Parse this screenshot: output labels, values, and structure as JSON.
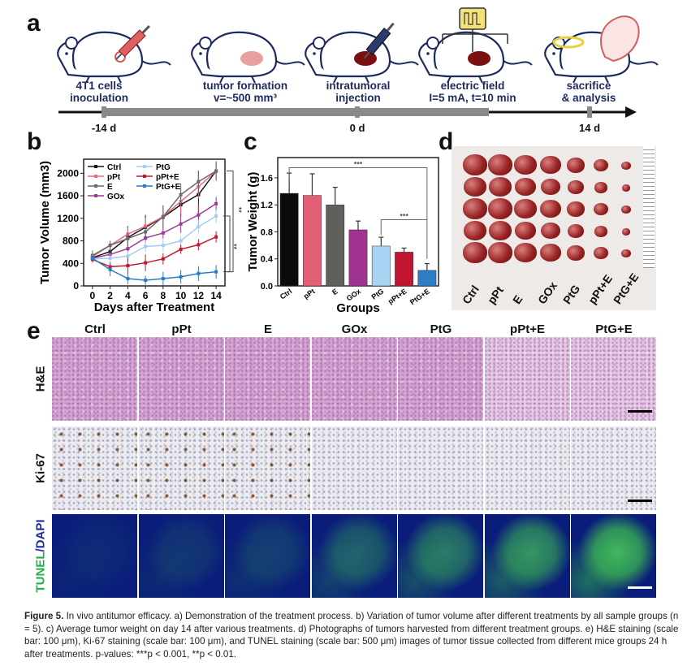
{
  "panel_labels": {
    "a": "a",
    "b": "b",
    "c": "c",
    "d": "d",
    "e": "e"
  },
  "panel_a": {
    "stages": [
      {
        "line1": "4T1 cells",
        "line2": "inoculation"
      },
      {
        "line1": "tumor formation",
        "line2": "v=~500 mm³"
      },
      {
        "line1": "intratumoral",
        "line2": "injection"
      },
      {
        "line1": "electric field",
        "line2": "I=5 mA, t=10 min"
      },
      {
        "line1": "sacrifice",
        "line2": "& analysis"
      }
    ],
    "timeline_ticks": [
      "-14 d",
      "0 d",
      "14 d"
    ]
  },
  "chart_data": [
    {
      "type": "line",
      "title": "",
      "xlabel": "Days after Treatment",
      "ylabel": "Tumor Volume (mm3)",
      "x": [
        0,
        2,
        4,
        6,
        8,
        10,
        12,
        14
      ],
      "xticks": [
        "0",
        "2",
        "4",
        "6",
        "8",
        "10",
        "12",
        "14"
      ],
      "yticks": [
        "0",
        "400",
        "800",
        "1200",
        "1600",
        "2000"
      ],
      "ylim": [
        0,
        2250
      ],
      "xlim": [
        -1,
        15
      ],
      "legend_position": "top-left",
      "significance": [
        "**",
        "**"
      ],
      "series": [
        {
          "name": "Ctrl",
          "color": "#151515",
          "marker": "square",
          "values": [
            500,
            610,
            860,
            1040,
            1220,
            1440,
            1620,
            2040
          ],
          "errors": [
            60,
            90,
            200,
            220,
            200,
            200,
            420,
            160
          ]
        },
        {
          "name": "pPt",
          "color": "#ea6b82",
          "marker": "circle",
          "values": [
            520,
            720,
            920,
            1060,
            1230,
            1500,
            1760,
            2040
          ],
          "errors": [
            60,
            80,
            120,
            150,
            200,
            220,
            200,
            180
          ]
        },
        {
          "name": "E",
          "color": "#6a6a6a",
          "marker": "triangle",
          "values": [
            540,
            720,
            840,
            960,
            1230,
            1620,
            1850,
            2040
          ],
          "errors": [
            90,
            80,
            110,
            100,
            200,
            200,
            200,
            160
          ]
        },
        {
          "name": "GOx",
          "color": "#9b3a94",
          "marker": "triangle-down",
          "values": [
            490,
            560,
            660,
            850,
            940,
            1100,
            1260,
            1460
          ],
          "errors": [
            60,
            80,
            80,
            100,
            100,
            160,
            200,
            120
          ]
        },
        {
          "name": "PtG",
          "color": "#a4cdf0",
          "marker": "circle",
          "values": [
            480,
            490,
            530,
            700,
            720,
            800,
            1050,
            1240
          ],
          "errors": [
            80,
            80,
            90,
            100,
            110,
            90,
            120,
            120
          ]
        },
        {
          "name": "pPt+E",
          "color": "#c0182c",
          "marker": "diamond",
          "values": [
            470,
            340,
            360,
            410,
            480,
            650,
            730,
            870
          ],
          "errors": [
            50,
            80,
            140,
            150,
            100,
            80,
            100,
            100
          ]
        },
        {
          "name": "PtG+E",
          "color": "#2b7bc6",
          "marker": "triangle-right",
          "values": [
            490,
            290,
            130,
            100,
            130,
            160,
            220,
            250
          ],
          "errors": [
            60,
            120,
            100,
            80,
            120,
            120,
            130,
            120
          ]
        }
      ]
    },
    {
      "type": "bar",
      "title": "",
      "xlabel": "Groups",
      "ylabel": "Tumor Weight (g)",
      "categories": [
        "Ctrl",
        "pPt",
        "E",
        "GOx",
        "PtG",
        "pPt+E",
        "PtG+E"
      ],
      "values": [
        1.37,
        1.34,
        1.2,
        0.83,
        0.59,
        0.5,
        0.23
      ],
      "errors": [
        0.3,
        0.32,
        0.26,
        0.13,
        0.13,
        0.06,
        0.1
      ],
      "colors": [
        "#0b0b0b",
        "#e35f76",
        "#5f5f5c",
        "#a0338f",
        "#a9d3f2",
        "#c2152f",
        "#2c7cc6"
      ],
      "yticks": [
        "0.0",
        "0.4",
        "0.8",
        "1.2",
        "1.6"
      ],
      "ylim": [
        0,
        1.9
      ],
      "significance": [
        "***",
        "***"
      ]
    }
  ],
  "panel_d": {
    "labels": [
      "Ctrl",
      "pPt",
      "E",
      "GOx",
      "PtG",
      "pPt+E",
      "PtG+E"
    ]
  },
  "panel_e": {
    "columns": [
      "Ctrl",
      "pPt",
      "E",
      "GOx",
      "PtG",
      "pPt+E",
      "PtG+E"
    ],
    "rows": [
      "H&E",
      "Ki-67",
      "TUNEL",
      "/DAPI"
    ]
  },
  "caption": {
    "label": "Figure 5.",
    "text": "In vivo antitumor efficacy. a) Demonstration of the treatment process. b) Variation of tumor volume after different treatments by all sample groups (n = 5). c) Average tumor weight on day 14 after various treatments. d) Photographs of tumors harvested from different treatment groups. e) H&E staining (scale bar: 100 μm), Ki-67 staining (scale bar: 100 μm), and TUNEL staining (scale bar: 500 μm) images of tumor tissue collected from different mice groups 24 h after treatments. p-values: ***p < 0.001, **p < 0.01."
  }
}
